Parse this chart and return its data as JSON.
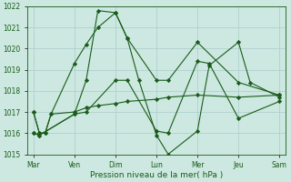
{
  "xlabel": "Pression niveau de la mer( hPa )",
  "ylim": [
    1015,
    1022
  ],
  "yticks": [
    1015,
    1016,
    1017,
    1018,
    1019,
    1020,
    1021,
    1022
  ],
  "x_day_labels": [
    "Mar",
    "Ven",
    "Dim",
    "Lun",
    "Mer",
    "Jeu",
    "Sam"
  ],
  "x_day_positions": [
    0.0,
    21.0,
    42.0,
    63.0,
    84.0,
    105.0,
    126.0
  ],
  "background_color": "#cce8e0",
  "grid_color": "#aacccc",
  "line_color": "#1a5c1a",
  "xlim": [
    -3,
    129
  ],
  "series1_x": [
    0,
    3,
    6,
    9,
    21,
    27,
    33,
    42,
    48,
    63,
    69,
    84,
    105,
    126
  ],
  "series1_y": [
    1017.0,
    1016.0,
    1016.0,
    1016.9,
    1019.3,
    1020.2,
    1021.0,
    1021.7,
    1020.5,
    1018.5,
    1018.5,
    1020.3,
    1018.4,
    1017.8
  ],
  "series2_x": [
    0,
    3,
    6,
    9,
    21,
    27,
    33,
    42,
    48,
    63,
    69,
    84,
    105,
    126
  ],
  "series2_y": [
    1017.0,
    1016.0,
    1016.0,
    1016.9,
    1017.0,
    1017.2,
    1017.3,
    1017.4,
    1017.5,
    1017.6,
    1017.7,
    1017.8,
    1017.7,
    1017.8
  ],
  "series3_x": [
    0,
    3,
    21,
    27,
    42,
    48,
    63,
    69,
    84,
    90,
    105,
    126
  ],
  "series3_y": [
    1016.0,
    1015.9,
    1016.9,
    1017.0,
    1018.5,
    1018.5,
    1016.1,
    1016.0,
    1019.4,
    1019.3,
    1016.7,
    1017.5
  ],
  "series4_x": [
    0,
    3,
    21,
    27,
    33,
    42,
    48,
    54,
    63,
    69,
    84,
    90,
    105,
    111,
    126
  ],
  "series4_y": [
    1016.0,
    1015.9,
    1016.9,
    1018.5,
    1021.8,
    1021.7,
    1020.5,
    1018.5,
    1015.9,
    1015.0,
    1016.1,
    1019.2,
    1020.3,
    1018.4,
    1017.7
  ]
}
